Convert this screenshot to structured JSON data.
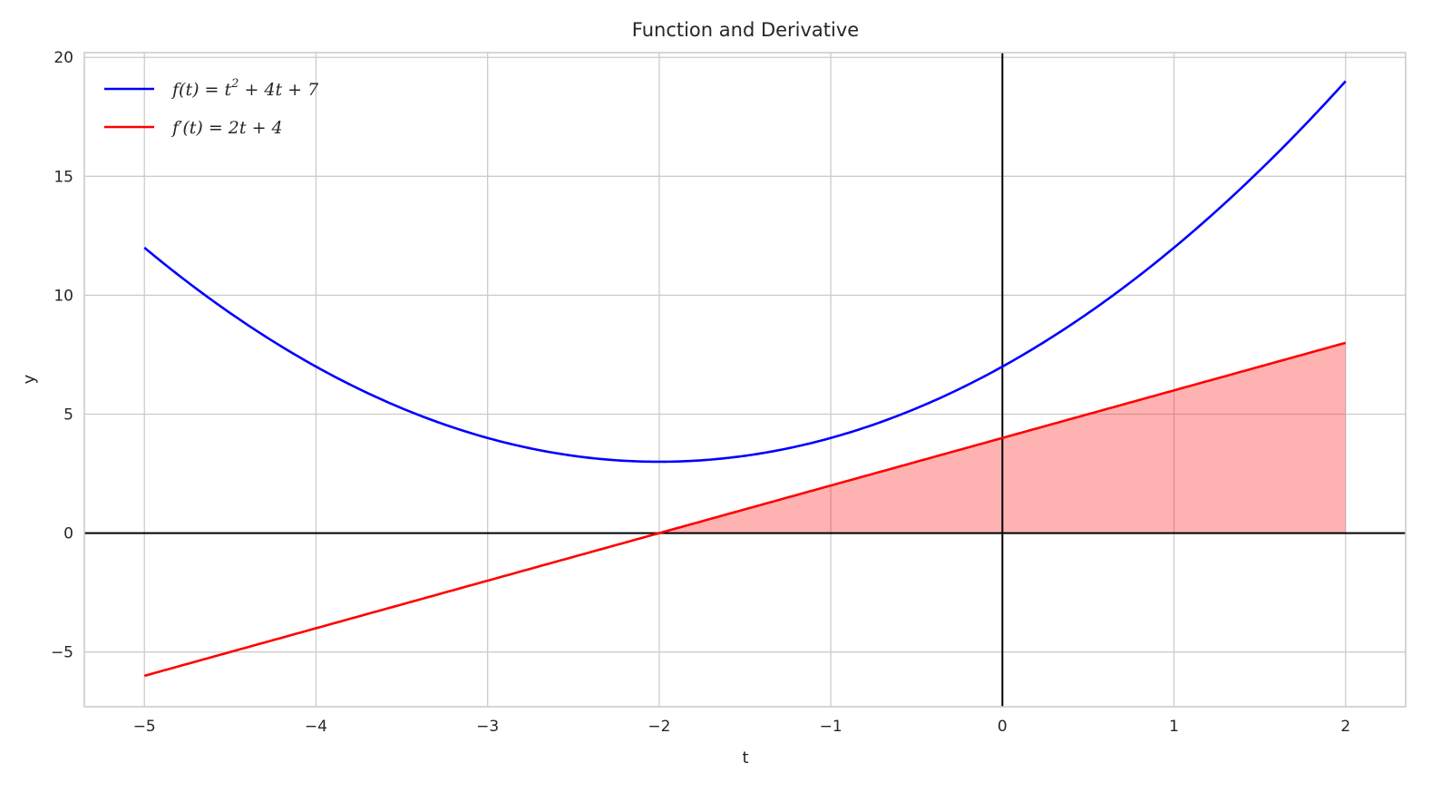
{
  "chart_data": {
    "type": "line",
    "title": "Function and Derivative",
    "xlabel": "t",
    "ylabel": "y",
    "xlim": [
      -5.35,
      2.35
    ],
    "ylim": [
      -7.3,
      20.2
    ],
    "xticks": [
      -5,
      -4,
      -3,
      -2,
      -1,
      0,
      1,
      2
    ],
    "yticks": [
      -5,
      0,
      5,
      10,
      15,
      20
    ],
    "xtick_labels": [
      "−5",
      "−4",
      "−3",
      "−2",
      "−1",
      "0",
      "1",
      "2"
    ],
    "ytick_labels": [
      "−5",
      "0",
      "5",
      "10",
      "15",
      "20"
    ],
    "grid": true,
    "legend_position": "top-left",
    "zero_lines": {
      "x": 0,
      "y": 0,
      "color": "#000000"
    },
    "t_range": [
      -5,
      2
    ],
    "series": [
      {
        "name": "f(t) = t² + 4t + 7",
        "legend": {
          "prefix": "f(t) = t",
          "sup": "2",
          "suffix": " + 4t + 7"
        },
        "coefficients": [
          1,
          4,
          7
        ],
        "color": "#0000ff",
        "x": [
          -5,
          -4.5,
          -4,
          -3.5,
          -3,
          -2.5,
          -2,
          -1.5,
          -1,
          -0.5,
          0,
          0.5,
          1,
          1.5,
          2
        ],
        "values": [
          12,
          9.25,
          7,
          5.25,
          4,
          3.25,
          3,
          3.25,
          4,
          5.25,
          7,
          9.25,
          12,
          15.25,
          19
        ]
      },
      {
        "name": "f′(t) = 2t + 4",
        "legend": {
          "prefix": "f′(t) = 2t + 4",
          "sup": "",
          "suffix": ""
        },
        "coefficients": [
          0,
          2,
          4
        ],
        "color": "#ff0000",
        "x": [
          -5,
          -4,
          -3,
          -2,
          -1,
          0,
          1,
          2
        ],
        "values": [
          -6,
          -4,
          -2,
          0,
          2,
          4,
          6,
          8
        ]
      }
    ],
    "fill": {
      "series": 1,
      "from_x": -2,
      "to_x": 2,
      "baseline": 0,
      "color": "#ff0000",
      "opacity": 0.3
    }
  }
}
